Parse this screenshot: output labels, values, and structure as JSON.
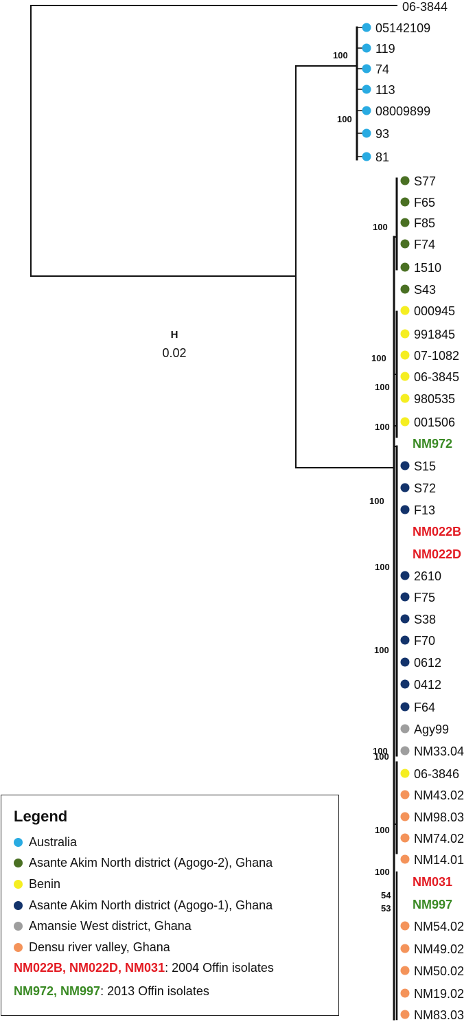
{
  "colors": {
    "australia": "#29abe2",
    "agogo2": "#4a7023",
    "benin": "#f5ee21",
    "agogo1": "#13336b",
    "amansie": "#9e9e9e",
    "densu": "#f4935a",
    "offin2004": "#e31b23",
    "offin2013": "#3a8a24"
  },
  "tree": {
    "outgroup_label": "06-3844",
    "leaves": [
      {
        "label": "05142109",
        "group": "australia"
      },
      {
        "label": "119",
        "group": "australia"
      },
      {
        "label": "74",
        "group": "australia"
      },
      {
        "label": "113",
        "group": "australia"
      },
      {
        "label": "08009899",
        "group": "australia"
      },
      {
        "label": "93",
        "group": "australia"
      },
      {
        "label": "81",
        "group": "australia"
      },
      {
        "label": "S77",
        "group": "agogo2"
      },
      {
        "label": "F65",
        "group": "agogo2"
      },
      {
        "label": "F85",
        "group": "agogo2"
      },
      {
        "label": "F74",
        "group": "agogo2"
      },
      {
        "label": "1510",
        "group": "agogo2"
      },
      {
        "label": "S43",
        "group": "agogo2"
      },
      {
        "label": "000945",
        "group": "benin"
      },
      {
        "label": "991845",
        "group": "benin"
      },
      {
        "label": "07-1082",
        "group": "benin"
      },
      {
        "label": "06-3845",
        "group": "benin"
      },
      {
        "label": "980535",
        "group": "benin"
      },
      {
        "label": "001506",
        "group": "benin"
      },
      {
        "label": "NM972",
        "group": "offin2013",
        "highlight": true
      },
      {
        "label": "S15",
        "group": "agogo1"
      },
      {
        "label": "S72",
        "group": "agogo1"
      },
      {
        "label": "F13",
        "group": "agogo1"
      },
      {
        "label": "NM022B",
        "group": "offin2004",
        "highlight": true
      },
      {
        "label": "NM022D",
        "group": "offin2004",
        "highlight": true
      },
      {
        "label": "2610",
        "group": "agogo1"
      },
      {
        "label": "F75",
        "group": "agogo1"
      },
      {
        "label": "S38",
        "group": "agogo1"
      },
      {
        "label": "F70",
        "group": "agogo1"
      },
      {
        "label": "0612",
        "group": "agogo1"
      },
      {
        "label": "0412",
        "group": "agogo1"
      },
      {
        "label": "F64",
        "group": "agogo1"
      },
      {
        "label": "Agy99",
        "group": "amansie"
      },
      {
        "label": "NM33.04",
        "group": "amansie"
      },
      {
        "label": "06-3846",
        "group": "benin"
      },
      {
        "label": "NM43.02",
        "group": "densu"
      },
      {
        "label": "NM98.03",
        "group": "densu"
      },
      {
        "label": "NM74.02",
        "group": "densu"
      },
      {
        "label": "NM14.01",
        "group": "densu"
      },
      {
        "label": "NM031",
        "group": "offin2004",
        "highlight": true
      },
      {
        "label": "NM997",
        "group": "offin2013",
        "highlight": true
      },
      {
        "label": "NM54.02",
        "group": "densu"
      },
      {
        "label": "NM49.02",
        "group": "densu"
      },
      {
        "label": "NM50.02",
        "group": "densu"
      },
      {
        "label": "NM19.02",
        "group": "densu"
      },
      {
        "label": "NM83.03",
        "group": "densu"
      }
    ],
    "support_values": [
      "100",
      "100",
      "100",
      "100",
      "100",
      "100",
      "100",
      "100",
      "100",
      "100",
      "100",
      "100",
      "100",
      "54",
      "53"
    ],
    "scale_bar": {
      "symbol": "H",
      "value": "0.02"
    }
  },
  "legend": {
    "title": "Legend",
    "entries": [
      {
        "label": "Australia",
        "group": "australia"
      },
      {
        "label": "Asante Akim North district (Agogo-2), Ghana",
        "group": "agogo2"
      },
      {
        "label": "Benin",
        "group": "benin"
      },
      {
        "label": "Asante Akim North district (Agogo-1), Ghana",
        "group": "agogo1"
      },
      {
        "label": "Amansie West district, Ghana",
        "group": "amansie"
      },
      {
        "label": "Densu river valley, Ghana",
        "group": "densu"
      }
    ],
    "offin_2004": {
      "isolates": "NM022B, NM022D, NM031",
      "text": ": 2004 Offin isolates"
    },
    "offin_2013": {
      "isolates": "NM972, NM997",
      "text": ": 2013 Offin isolates"
    }
  }
}
